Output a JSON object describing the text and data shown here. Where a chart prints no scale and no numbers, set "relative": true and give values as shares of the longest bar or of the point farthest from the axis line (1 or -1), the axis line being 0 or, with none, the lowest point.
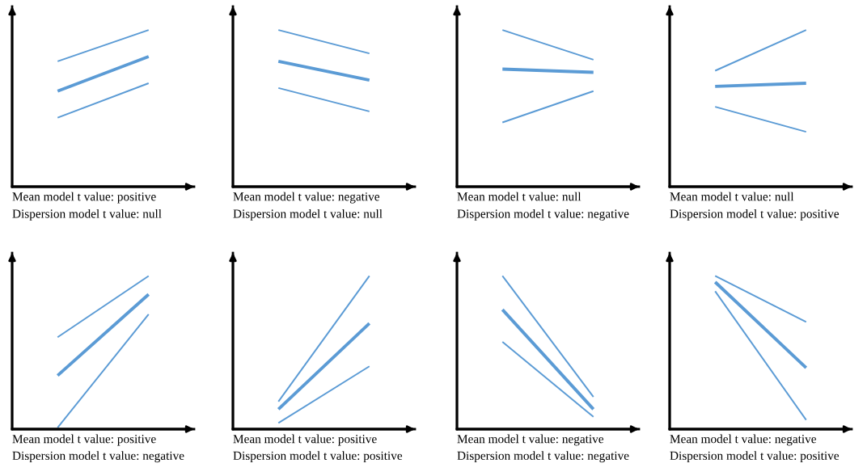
{
  "chart_data": [
    {
      "type": "line",
      "relative": true,
      "tick_labels": false,
      "categories": [
        null,
        null
      ],
      "annotations": [
        "Mean model t value: positive",
        "Dispersion model t value: null"
      ],
      "series": [
        {
          "color": "#5b9bd5",
          "values": [
            0.8,
            1.0
          ]
        },
        {
          "color": "#5b9bd5",
          "values": [
            0.61,
            0.83
          ]
        },
        {
          "color": "#5b9bd5",
          "values": [
            0.44,
            0.66
          ]
        }
      ]
    },
    {
      "type": "line",
      "relative": true,
      "tick_labels": false,
      "categories": [
        null,
        null
      ],
      "annotations": [
        "Mean model t value: negative",
        "Dispersion model t value: null"
      ],
      "series": [
        {
          "color": "#5b9bd5",
          "values": [
            1.0,
            0.85
          ]
        },
        {
          "color": "#5b9bd5",
          "values": [
            0.8,
            0.68
          ]
        },
        {
          "color": "#5b9bd5",
          "values": [
            0.63,
            0.48
          ]
        }
      ]
    },
    {
      "type": "line",
      "relative": true,
      "tick_labels": false,
      "categories": [
        null,
        null
      ],
      "annotations": [
        "Mean model t value: null",
        "Dispersion model t value: negative"
      ],
      "series": [
        {
          "color": "#5b9bd5",
          "values": [
            1.0,
            0.81
          ]
        },
        {
          "color": "#5b9bd5",
          "values": [
            0.75,
            0.73
          ]
        },
        {
          "color": "#5b9bd5",
          "values": [
            0.41,
            0.61
          ]
        }
      ]
    },
    {
      "type": "line",
      "relative": true,
      "tick_labels": false,
      "categories": [
        null,
        null
      ],
      "annotations": [
        "Mean model t value: null",
        "Dispersion model t value: positive"
      ],
      "series": [
        {
          "color": "#5b9bd5",
          "values": [
            0.74,
            1.0
          ]
        },
        {
          "color": "#5b9bd5",
          "values": [
            0.64,
            0.66
          ]
        },
        {
          "color": "#5b9bd5",
          "values": [
            0.51,
            0.35
          ]
        }
      ]
    },
    {
      "type": "line",
      "relative": true,
      "tick_labels": false,
      "categories": [
        null,
        null
      ],
      "annotations": [
        "Mean model t value: positive",
        "Dispersion model t value: negative"
      ],
      "series": [
        {
          "color": "#5b9bd5",
          "values": [
            0.6,
            1.0
          ]
        },
        {
          "color": "#5b9bd5",
          "values": [
            0.35,
            0.88
          ]
        },
        {
          "color": "#5b9bd5",
          "values": [
            0.01,
            0.75
          ]
        }
      ]
    },
    {
      "type": "line",
      "relative": true,
      "tick_labels": false,
      "categories": [
        null,
        null
      ],
      "annotations": [
        "Mean model t value: positive",
        "Dispersion model t value: positive"
      ],
      "series": [
        {
          "color": "#5b9bd5",
          "values": [
            0.18,
            1.0
          ]
        },
        {
          "color": "#5b9bd5",
          "values": [
            0.13,
            0.69
          ]
        },
        {
          "color": "#5b9bd5",
          "values": [
            0.04,
            0.41
          ]
        }
      ]
    },
    {
      "type": "line",
      "relative": true,
      "tick_labels": false,
      "categories": [
        null,
        null
      ],
      "annotations": [
        "Mean model t value: negative",
        "Dispersion model t value: negative"
      ],
      "series": [
        {
          "color": "#5b9bd5",
          "values": [
            1.0,
            0.21
          ]
        },
        {
          "color": "#5b9bd5",
          "values": [
            0.78,
            0.13
          ]
        },
        {
          "color": "#5b9bd5",
          "values": [
            0.57,
            0.08
          ]
        }
      ]
    },
    {
      "type": "line",
      "relative": true,
      "tick_labels": false,
      "categories": [
        null,
        null
      ],
      "annotations": [
        "Mean model t value: negative",
        "Dispersion model t value: positive"
      ],
      "series": [
        {
          "color": "#5b9bd5",
          "values": [
            1.0,
            0.7
          ]
        },
        {
          "color": "#5b9bd5",
          "values": [
            0.96,
            0.4
          ]
        },
        {
          "color": "#5b9bd5",
          "values": [
            0.9,
            0.06
          ]
        }
      ]
    }
  ]
}
